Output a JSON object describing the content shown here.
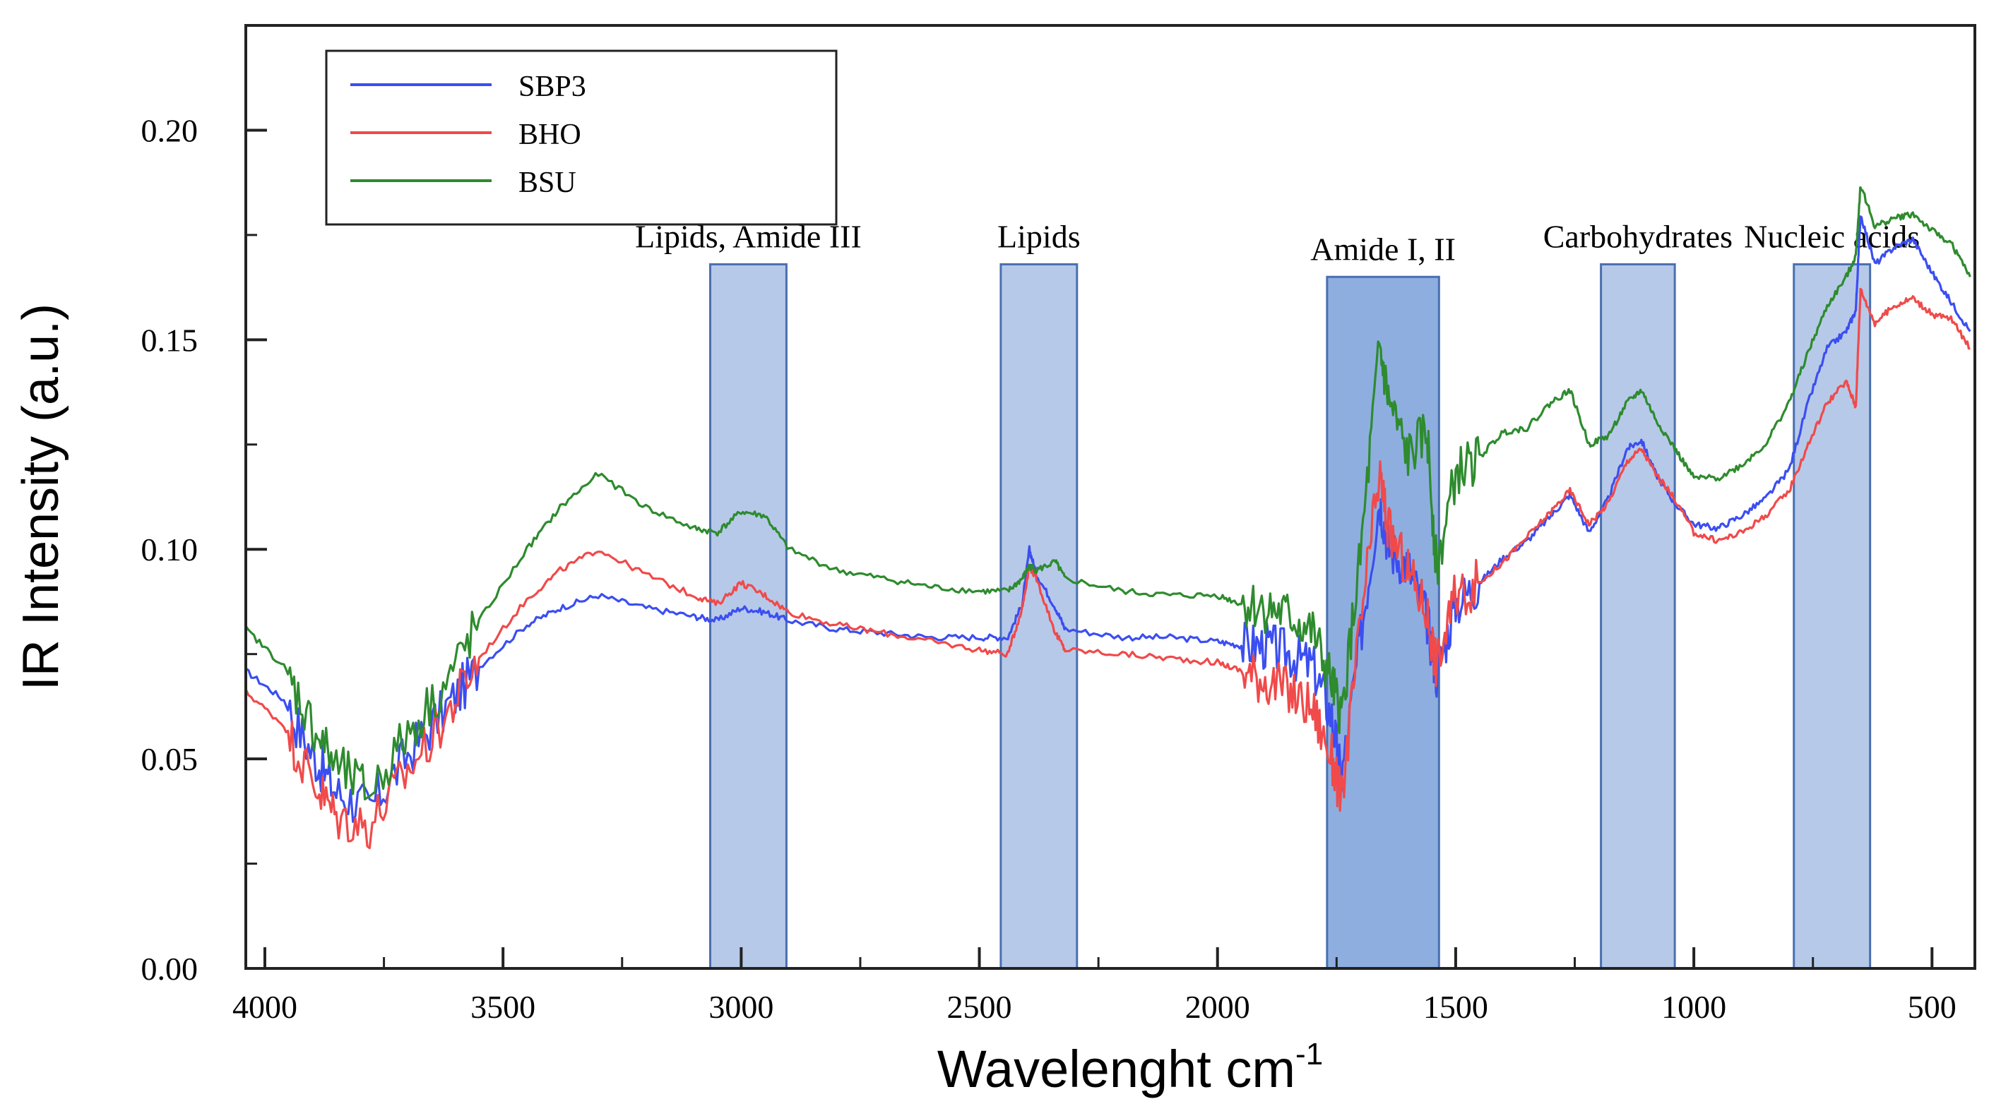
{
  "chart_data": {
    "type": "line",
    "title": "",
    "xlabel": "Wavelenght cm",
    "xlabel_sup": "-1",
    "ylabel": "IR Intensity (a.u.)",
    "xlim": [
      4040,
      410
    ],
    "ylim": [
      0.0,
      0.225
    ],
    "x_ticks": [
      4000,
      3500,
      3000,
      2500,
      2000,
      1500,
      1000,
      500
    ],
    "x_tick_labels": [
      "4000",
      "3500",
      "3000",
      "2500",
      "2000",
      "1500",
      "1000",
      "500"
    ],
    "y_ticks": [
      0.0,
      0.05,
      0.1,
      0.15,
      0.2
    ],
    "y_tick_labels": [
      "0.00",
      "0.05",
      "0.10",
      "0.15",
      "0.20"
    ],
    "legend": {
      "position": "top-left",
      "entries": [
        {
          "label": "SBP3",
          "color": "#3b4ef0"
        },
        {
          "label": "BHO",
          "color": "#f04a4a"
        },
        {
          "label": "BSU",
          "color": "#2e8b2e"
        }
      ]
    },
    "regions": [
      {
        "label": "Lipids, Amide III",
        "x_from": 3065,
        "x_to": 2905,
        "top": 0.168,
        "color": "#b7c9e9"
      },
      {
        "label": "Lipids",
        "x_from": 2455,
        "x_to": 2295,
        "top": 0.168,
        "color": "#b7c9e9"
      },
      {
        "label": "Amide I, II",
        "x_from": 1770,
        "x_to": 1535,
        "top": 0.165,
        "color": "#8eaee0"
      },
      {
        "label": "Carbohydrates",
        "x_from": 1195,
        "x_to": 1040,
        "top": 0.168,
        "color": "#b7c9e9"
      },
      {
        "label": "Nucleic acids",
        "x_from": 790,
        "x_to": 630,
        "top": 0.168,
        "color": "#b7c9e9"
      }
    ],
    "series": [
      {
        "name": "SBP3",
        "color": "#3b4ef0",
        "x": [
          4040,
          3960,
          3900,
          3850,
          3780,
          3700,
          3620,
          3550,
          3450,
          3380,
          3300,
          3200,
          3100,
          3050,
          3000,
          2950,
          2900,
          2800,
          2700,
          2600,
          2500,
          2440,
          2410,
          2395,
          2380,
          2340,
          2320,
          2200,
          2100,
          2000,
          1950,
          1900,
          1850,
          1800,
          1760,
          1740,
          1700,
          1660,
          1640,
          1600,
          1560,
          1540,
          1500,
          1450,
          1400,
          1350,
          1300,
          1260,
          1220,
          1180,
          1140,
          1110,
          1080,
          1040,
          1000,
          950,
          900,
          850,
          800,
          760,
          720,
          680,
          660,
          650,
          620,
          580,
          540,
          500,
          460,
          420
        ],
        "y": [
          0.071,
          0.064,
          0.051,
          0.042,
          0.038,
          0.051,
          0.062,
          0.072,
          0.082,
          0.086,
          0.089,
          0.086,
          0.084,
          0.083,
          0.086,
          0.085,
          0.083,
          0.081,
          0.08,
          0.079,
          0.079,
          0.079,
          0.087,
          0.1,
          0.094,
          0.086,
          0.081,
          0.079,
          0.079,
          0.078,
          0.077,
          0.077,
          0.075,
          0.072,
          0.06,
          0.045,
          0.079,
          0.112,
          0.1,
          0.096,
          0.083,
          0.07,
          0.087,
          0.092,
          0.098,
          0.102,
          0.108,
          0.113,
          0.104,
          0.112,
          0.124,
          0.126,
          0.118,
          0.111,
          0.106,
          0.105,
          0.108,
          0.112,
          0.119,
          0.135,
          0.148,
          0.152,
          0.157,
          0.18,
          0.168,
          0.172,
          0.174,
          0.166,
          0.159,
          0.152
        ]
      },
      {
        "name": "BHO",
        "color": "#f04a4a",
        "x": [
          4040,
          3960,
          3900,
          3850,
          3780,
          3700,
          3620,
          3550,
          3450,
          3380,
          3300,
          3200,
          3100,
          3050,
          3000,
          2950,
          2900,
          2800,
          2700,
          2600,
          2500,
          2440,
          2410,
          2395,
          2380,
          2340,
          2320,
          2200,
          2100,
          2000,
          1950,
          1900,
          1850,
          1800,
          1760,
          1740,
          1700,
          1660,
          1640,
          1600,
          1560,
          1540,
          1500,
          1450,
          1400,
          1350,
          1300,
          1260,
          1220,
          1180,
          1140,
          1110,
          1080,
          1040,
          1000,
          950,
          900,
          850,
          800,
          760,
          720,
          680,
          660,
          650,
          620,
          580,
          540,
          500,
          460,
          420
        ],
        "y": [
          0.066,
          0.058,
          0.045,
          0.036,
          0.034,
          0.047,
          0.06,
          0.074,
          0.088,
          0.095,
          0.1,
          0.094,
          0.089,
          0.087,
          0.092,
          0.089,
          0.085,
          0.082,
          0.08,
          0.078,
          0.076,
          0.075,
          0.086,
          0.096,
          0.093,
          0.08,
          0.076,
          0.075,
          0.074,
          0.073,
          0.071,
          0.069,
          0.066,
          0.062,
          0.05,
          0.04,
          0.082,
          0.118,
          0.104,
          0.095,
          0.085,
          0.072,
          0.089,
          0.092,
          0.097,
          0.103,
          0.109,
          0.114,
          0.106,
          0.111,
          0.121,
          0.124,
          0.118,
          0.112,
          0.104,
          0.102,
          0.104,
          0.108,
          0.114,
          0.125,
          0.135,
          0.14,
          0.134,
          0.162,
          0.154,
          0.158,
          0.16,
          0.156,
          0.155,
          0.148
        ]
      },
      {
        "name": "BSU",
        "color": "#2e8b2e",
        "x": [
          4040,
          3960,
          3900,
          3850,
          3780,
          3700,
          3620,
          3550,
          3450,
          3380,
          3300,
          3200,
          3100,
          3050,
          3000,
          2950,
          2900,
          2800,
          2700,
          2600,
          2500,
          2440,
          2410,
          2395,
          2380,
          2340,
          2320,
          2200,
          2100,
          2000,
          1950,
          1900,
          1850,
          1800,
          1760,
          1740,
          1700,
          1660,
          1640,
          1600,
          1560,
          1540,
          1500,
          1450,
          1400,
          1350,
          1300,
          1260,
          1220,
          1180,
          1140,
          1110,
          1080,
          1040,
          1000,
          950,
          900,
          850,
          800,
          760,
          720,
          680,
          660,
          650,
          620,
          580,
          540,
          500,
          460,
          420
        ],
        "y": [
          0.081,
          0.072,
          0.058,
          0.048,
          0.042,
          0.056,
          0.068,
          0.083,
          0.1,
          0.11,
          0.118,
          0.11,
          0.105,
          0.104,
          0.109,
          0.108,
          0.1,
          0.095,
          0.093,
          0.091,
          0.09,
          0.09,
          0.093,
          0.096,
          0.095,
          0.097,
          0.093,
          0.09,
          0.089,
          0.089,
          0.087,
          0.086,
          0.084,
          0.08,
          0.068,
          0.06,
          0.098,
          0.148,
          0.135,
          0.122,
          0.128,
          0.095,
          0.118,
          0.122,
          0.128,
          0.129,
          0.135,
          0.138,
          0.125,
          0.127,
          0.135,
          0.138,
          0.131,
          0.124,
          0.117,
          0.117,
          0.12,
          0.125,
          0.135,
          0.147,
          0.158,
          0.165,
          0.17,
          0.187,
          0.177,
          0.179,
          0.18,
          0.176,
          0.173,
          0.165
        ]
      }
    ]
  }
}
